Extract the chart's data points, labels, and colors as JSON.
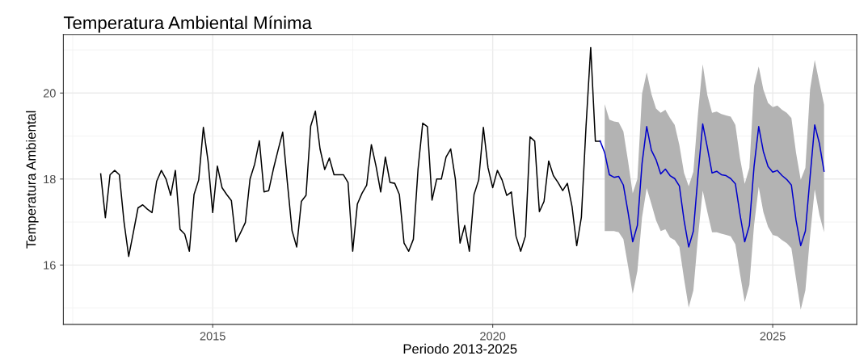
{
  "chart_data": {
    "type": "line",
    "title": "Temperatura Ambiental Mínima",
    "xlabel": "Periodo 2013-2025",
    "ylabel": "Temperatura Ambiental",
    "xlim": [
      "2012-05",
      "2026-07"
    ],
    "xticks": [
      {
        "value": "2015-01",
        "label": "2015"
      },
      {
        "value": "2020-01",
        "label": "2020"
      },
      {
        "value": "2025-01",
        "label": "2025"
      }
    ],
    "ylim": [
      14.62,
      21.36
    ],
    "yticks": [
      16,
      18,
      20
    ],
    "grid": true,
    "legend": false,
    "series": [
      {
        "color": "#000000",
        "x": [
          "2013-01",
          "2013-02",
          "2013-03",
          "2013-04",
          "2013-05",
          "2013-06",
          "2013-07",
          "2013-08",
          "2013-09",
          "2013-10",
          "2013-11",
          "2013-12",
          "2014-01",
          "2014-02",
          "2014-03",
          "2014-04",
          "2014-05",
          "2014-06",
          "2014-07",
          "2014-08",
          "2014-09",
          "2014-10",
          "2014-11",
          "2014-12",
          "2015-01",
          "2015-02",
          "2015-03",
          "2015-04",
          "2015-05",
          "2015-06",
          "2015-07",
          "2015-08",
          "2015-09",
          "2015-10",
          "2015-11",
          "2015-12",
          "2016-01",
          "2016-02",
          "2016-03",
          "2016-04",
          "2016-05",
          "2016-06",
          "2016-07",
          "2016-08",
          "2016-09",
          "2016-10",
          "2016-11",
          "2016-12",
          "2017-01",
          "2017-02",
          "2017-03",
          "2017-04",
          "2017-05",
          "2017-06",
          "2017-07",
          "2017-08",
          "2017-09",
          "2017-10",
          "2017-11",
          "2017-12",
          "2018-01",
          "2018-02",
          "2018-03",
          "2018-04",
          "2018-05",
          "2018-06",
          "2018-07",
          "2018-08",
          "2018-09",
          "2018-10",
          "2018-11",
          "2018-12",
          "2019-01",
          "2019-02",
          "2019-03",
          "2019-04",
          "2019-05",
          "2019-06",
          "2019-07",
          "2019-08",
          "2019-09",
          "2019-10",
          "2019-11",
          "2019-12",
          "2020-01",
          "2020-02",
          "2020-03",
          "2020-04",
          "2020-05",
          "2020-06",
          "2020-07",
          "2020-08",
          "2020-09",
          "2020-10",
          "2020-11",
          "2020-12",
          "2021-01",
          "2021-02",
          "2021-03",
          "2021-04",
          "2021-05",
          "2021-06",
          "2021-07",
          "2021-08",
          "2021-09",
          "2021-10",
          "2021-11",
          "2021-12"
        ],
        "values": [
          18.12,
          17.1,
          18.1,
          18.2,
          18.1,
          17.0,
          16.2,
          16.76,
          17.33,
          17.4,
          17.3,
          17.22,
          17.95,
          18.2,
          18.0,
          17.62,
          18.2,
          16.83,
          16.72,
          16.32,
          17.64,
          17.98,
          19.2,
          18.42,
          17.22,
          18.3,
          17.8,
          17.64,
          17.5,
          16.54,
          16.76,
          16.99,
          18.0,
          18.35,
          18.89,
          17.7,
          17.73,
          18.23,
          18.67,
          19.09,
          17.92,
          16.8,
          16.42,
          17.48,
          17.62,
          19.23,
          19.58,
          18.7,
          18.22,
          18.49,
          18.1,
          18.1,
          18.1,
          17.92,
          16.32,
          17.42,
          17.67,
          17.86,
          18.8,
          18.3,
          17.7,
          18.51,
          17.92,
          17.9,
          17.64,
          16.51,
          16.32,
          16.6,
          18.23,
          19.3,
          19.22,
          17.51,
          18.0,
          18.0,
          18.51,
          18.7,
          18.0,
          16.51,
          16.92,
          16.32,
          17.64,
          17.98,
          19.2,
          18.26,
          17.8,
          18.2,
          17.98,
          17.62,
          17.7,
          16.67,
          16.32,
          16.67,
          18.98,
          18.88,
          17.24,
          17.48,
          18.42,
          18.08,
          17.92,
          17.73,
          17.9,
          17.36,
          16.45,
          17.11,
          19.23,
          21.06,
          18.88,
          18.88
        ]
      },
      {
        "color": "#0000cc",
        "x": [
          "2021-12",
          "2022-01",
          "2022-02",
          "2022-03",
          "2022-04",
          "2022-05",
          "2022-06",
          "2022-07",
          "2022-08",
          "2022-09",
          "2022-10",
          "2022-11",
          "2022-12",
          "2023-01",
          "2023-02",
          "2023-03",
          "2023-04",
          "2023-05",
          "2023-06",
          "2023-07",
          "2023-08",
          "2023-09",
          "2023-10",
          "2023-11",
          "2023-12",
          "2024-01",
          "2024-02",
          "2024-03",
          "2024-04",
          "2024-05",
          "2024-06",
          "2024-07",
          "2024-08",
          "2024-09",
          "2024-10",
          "2024-11",
          "2024-12",
          "2025-01",
          "2025-02",
          "2025-03",
          "2025-04",
          "2025-05",
          "2025-06",
          "2025-07",
          "2025-08",
          "2025-09",
          "2025-10",
          "2025-11",
          "2025-12"
        ],
        "values": [
          18.89,
          18.61,
          18.1,
          18.04,
          18.06,
          17.86,
          17.23,
          16.54,
          16.92,
          18.36,
          19.22,
          18.67,
          18.45,
          18.12,
          18.23,
          18.08,
          18.01,
          17.84,
          17.04,
          16.42,
          16.79,
          18.1,
          19.28,
          18.73,
          18.14,
          18.18,
          18.1,
          18.08,
          18.01,
          17.89,
          17.17,
          16.54,
          16.92,
          18.29,
          19.22,
          18.64,
          18.29,
          18.16,
          18.2,
          18.08,
          17.99,
          17.86,
          17.04,
          16.45,
          16.79,
          18.04,
          19.26,
          18.83,
          18.18
        ],
        "upper": [
          null,
          19.74,
          19.38,
          19.34,
          19.32,
          19.11,
          18.42,
          17.67,
          18.0,
          19.98,
          20.48,
          19.98,
          19.64,
          19.54,
          19.61,
          19.42,
          19.26,
          18.79,
          18.14,
          17.83,
          18.17,
          19.54,
          20.67,
          19.95,
          19.54,
          19.57,
          19.51,
          19.48,
          19.45,
          19.26,
          18.48,
          17.89,
          18.26,
          20.17,
          20.62,
          20.08,
          19.77,
          19.67,
          19.71,
          19.61,
          19.54,
          19.42,
          18.61,
          17.98,
          18.26,
          20.08,
          20.77,
          20.24,
          19.73
        ],
        "lower": [
          null,
          16.79,
          16.79,
          16.79,
          16.76,
          16.6,
          15.98,
          15.33,
          15.86,
          17.11,
          17.79,
          17.42,
          17.04,
          16.79,
          16.83,
          16.64,
          16.58,
          16.42,
          15.68,
          15.01,
          15.41,
          16.67,
          17.73,
          17.23,
          16.76,
          16.76,
          16.73,
          16.7,
          16.67,
          16.48,
          15.79,
          15.14,
          15.54,
          16.92,
          17.82,
          17.23,
          16.89,
          16.7,
          16.67,
          16.58,
          16.51,
          16.39,
          15.68,
          14.96,
          15.41,
          16.67,
          17.76,
          17.17,
          16.76
        ]
      }
    ]
  }
}
